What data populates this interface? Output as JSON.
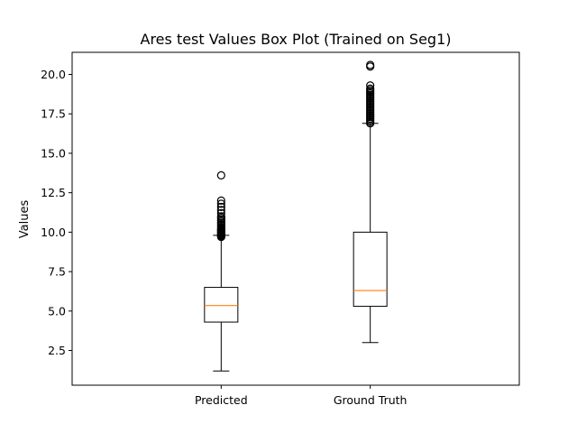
{
  "chart_data": {
    "type": "box",
    "title": "Ares test Values Box Plot (Trained on Seg1)",
    "xlabel": "",
    "ylabel": "Values",
    "ylim": [
      0.3,
      21.4
    ],
    "yticks": [
      2.5,
      5.0,
      7.5,
      10.0,
      12.5,
      15.0,
      17.5,
      20.0
    ],
    "ytick_labels": [
      "2.5",
      "5.0",
      "7.5",
      "10.0",
      "12.5",
      "15.0",
      "17.5",
      "20.0"
    ],
    "categories": [
      "Predicted",
      "Ground Truth"
    ],
    "grid": false,
    "colors": {
      "box": "#000000",
      "median": "#ff7f0e"
    },
    "boxes": [
      {
        "label": "Predicted",
        "whisker_low": 1.2,
        "q1": 4.3,
        "median": 5.35,
        "q3": 6.5,
        "whisker_high": 9.8,
        "outliers": [
          9.7,
          9.75,
          9.8,
          9.85,
          9.9,
          9.95,
          10.0,
          10.05,
          10.1,
          10.15,
          10.2,
          10.3,
          10.4,
          10.5,
          10.6,
          10.7,
          10.8,
          10.9,
          11.0,
          11.2,
          11.4,
          11.6,
          11.8,
          12.0,
          13.6
        ]
      },
      {
        "label": "Ground Truth",
        "whisker_low": 3.0,
        "q1": 5.3,
        "median": 6.3,
        "q3": 10.0,
        "whisker_high": 16.9,
        "outliers": [
          16.9,
          17.0,
          17.1,
          17.2,
          17.3,
          17.4,
          17.5,
          17.6,
          17.7,
          17.8,
          17.9,
          18.0,
          18.1,
          18.2,
          18.3,
          18.4,
          18.5,
          18.6,
          18.7,
          18.8,
          18.9,
          19.0,
          19.1,
          19.3,
          20.5,
          20.6
        ]
      }
    ]
  }
}
